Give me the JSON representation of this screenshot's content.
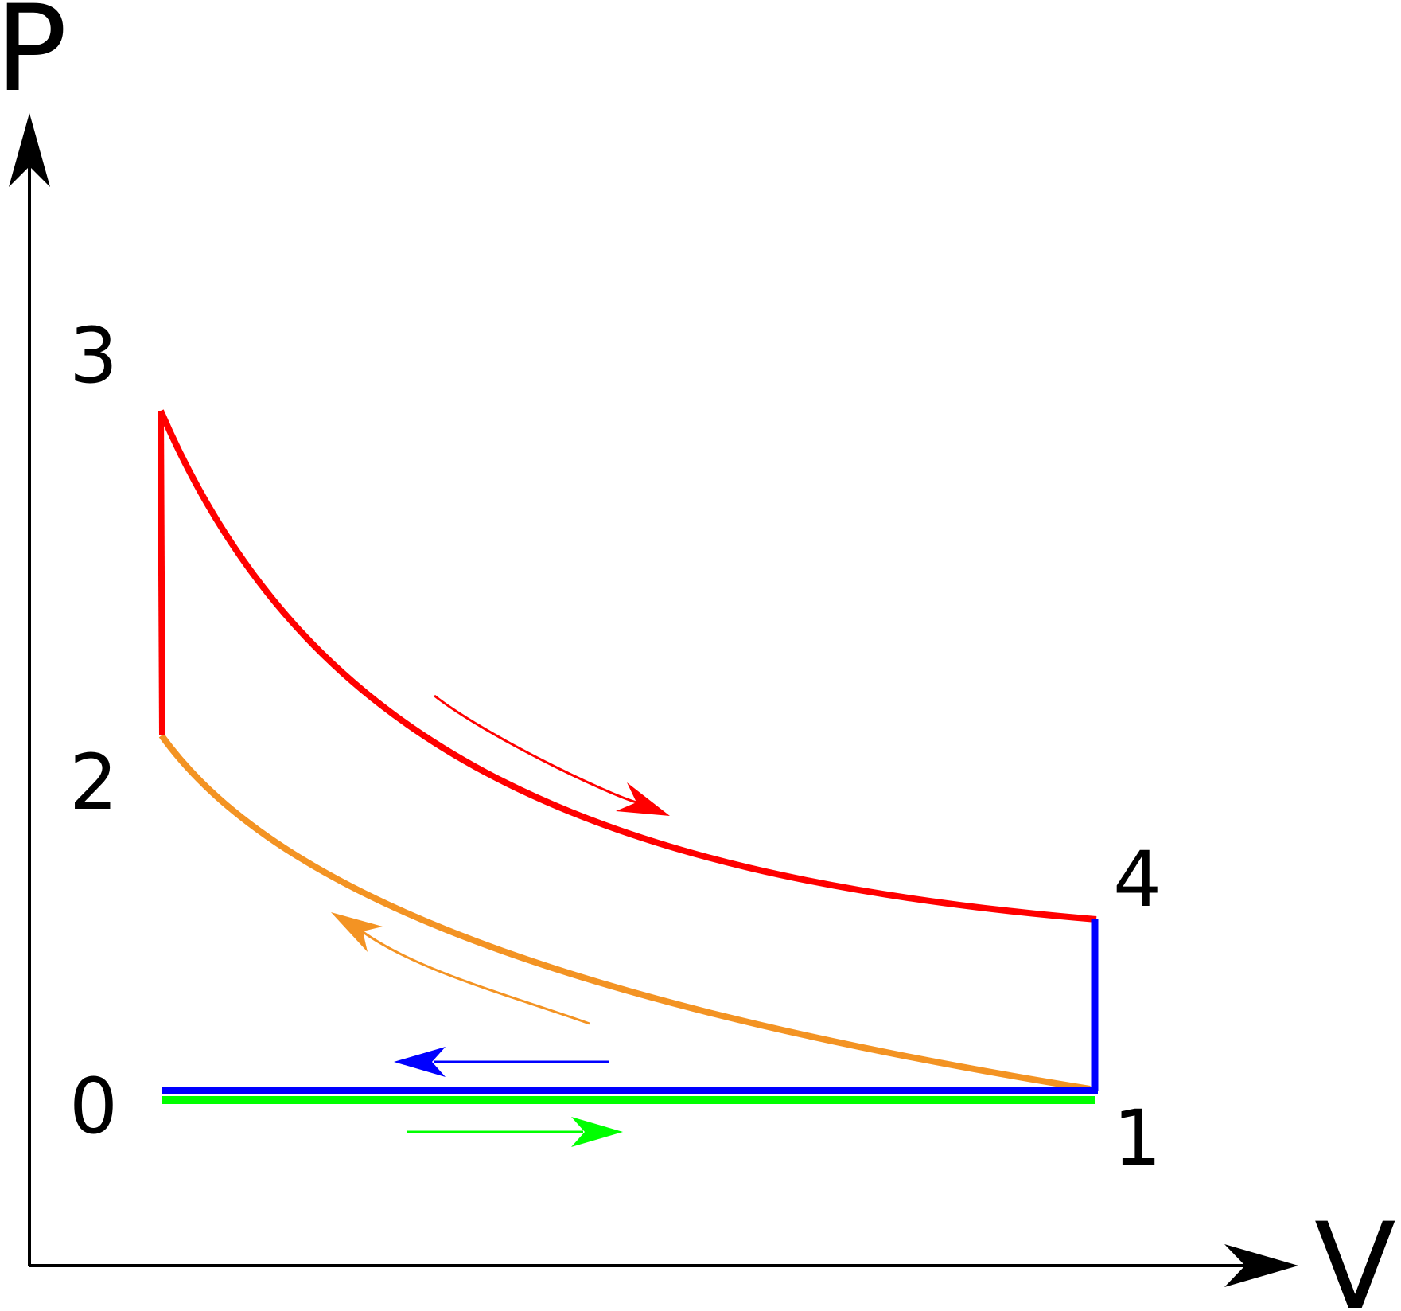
{
  "diagram": {
    "axes": {
      "y_label": "P",
      "x_label": "V"
    },
    "point_labels": {
      "p0": "0",
      "p1": "1",
      "p2": "2",
      "p3": "3",
      "p4": "4"
    },
    "colors": {
      "axis": "#000000",
      "combustion_expansion": "#ff0000",
      "compression": "#f39323",
      "exhaust_and_blowdown": "#0000ff",
      "intake": "#00ff00"
    }
  }
}
